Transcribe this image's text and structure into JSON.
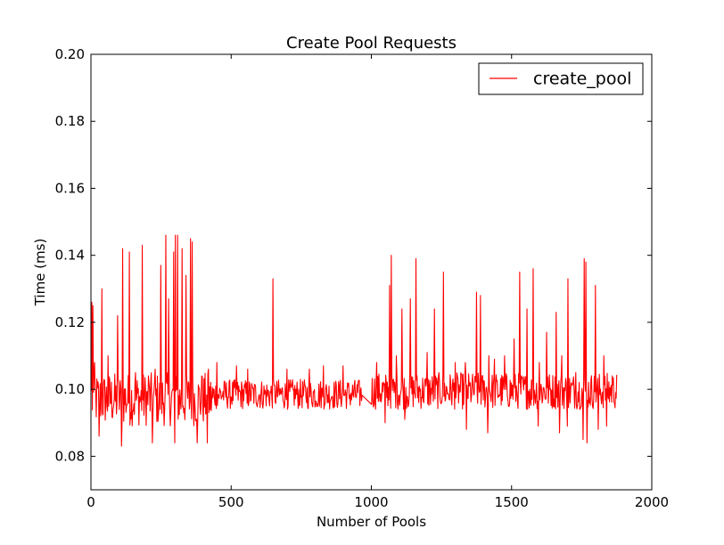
{
  "chart_data": {
    "type": "line",
    "title": "Create Pool Requests",
    "xlabel": "Number of Pools",
    "ylabel": "Time (ms)",
    "xlim": [
      0,
      2000
    ],
    "ylim": [
      0.07,
      0.2
    ],
    "x_ticks": [
      0,
      500,
      1000,
      1500,
      2000
    ],
    "x_tick_labels": [
      "0",
      "500",
      "1000",
      "1500",
      "2000"
    ],
    "y_ticks": [
      0.08,
      0.1,
      0.12,
      0.14,
      0.16,
      0.18,
      0.2
    ],
    "y_tick_labels": [
      "0.08",
      "0.10",
      "0.12",
      "0.14",
      "0.16",
      "0.18",
      "0.20"
    ],
    "grid": false,
    "legend": {
      "position": "top-right",
      "entries": [
        "create_pool"
      ]
    },
    "series": [
      {
        "name": "create_pool",
        "color": "#ff0000",
        "x_start": 1,
        "x_end": 1875,
        "gap": [
          968,
          1000
        ],
        "baseline": 0.099,
        "segments": [
          {
            "from": 1,
            "to": 440,
            "mean": 0.097,
            "amplitude": 0.008
          },
          {
            "from": 440,
            "to": 968,
            "mean": 0.0985,
            "amplitude": 0.0045
          },
          {
            "from": 1000,
            "to": 1875,
            "mean": 0.0995,
            "amplitude": 0.0055
          }
        ],
        "peaks": [
          {
            "x": 3,
            "y": 0.126
          },
          {
            "x": 8,
            "y": 0.125
          },
          {
            "x": 14,
            "y": 0.108
          },
          {
            "x": 40,
            "y": 0.13
          },
          {
            "x": 62,
            "y": 0.11
          },
          {
            "x": 96,
            "y": 0.122
          },
          {
            "x": 113,
            "y": 0.142
          },
          {
            "x": 138,
            "y": 0.141
          },
          {
            "x": 160,
            "y": 0.105
          },
          {
            "x": 183,
            "y": 0.143
          },
          {
            "x": 205,
            "y": 0.104
          },
          {
            "x": 230,
            "y": 0.106
          },
          {
            "x": 250,
            "y": 0.137
          },
          {
            "x": 268,
            "y": 0.146
          },
          {
            "x": 277,
            "y": 0.127
          },
          {
            "x": 295,
            "y": 0.141
          },
          {
            "x": 302,
            "y": 0.146
          },
          {
            "x": 309,
            "y": 0.146
          },
          {
            "x": 325,
            "y": 0.142
          },
          {
            "x": 340,
            "y": 0.134
          },
          {
            "x": 355,
            "y": 0.145
          },
          {
            "x": 362,
            "y": 0.144
          },
          {
            "x": 395,
            "y": 0.104
          },
          {
            "x": 420,
            "y": 0.106
          },
          {
            "x": 450,
            "y": 0.108
          },
          {
            "x": 520,
            "y": 0.107
          },
          {
            "x": 560,
            "y": 0.106
          },
          {
            "x": 650,
            "y": 0.133
          },
          {
            "x": 700,
            "y": 0.106
          },
          {
            "x": 780,
            "y": 0.106
          },
          {
            "x": 830,
            "y": 0.107
          },
          {
            "x": 900,
            "y": 0.107
          },
          {
            "x": 1020,
            "y": 0.108
          },
          {
            "x": 1066,
            "y": 0.131
          },
          {
            "x": 1072,
            "y": 0.14
          },
          {
            "x": 1090,
            "y": 0.11
          },
          {
            "x": 1110,
            "y": 0.124
          },
          {
            "x": 1140,
            "y": 0.127
          },
          {
            "x": 1160,
            "y": 0.139
          },
          {
            "x": 1200,
            "y": 0.111
          },
          {
            "x": 1225,
            "y": 0.124
          },
          {
            "x": 1258,
            "y": 0.135
          },
          {
            "x": 1300,
            "y": 0.108
          },
          {
            "x": 1335,
            "y": 0.108
          },
          {
            "x": 1375,
            "y": 0.129
          },
          {
            "x": 1390,
            "y": 0.128
          },
          {
            "x": 1420,
            "y": 0.11
          },
          {
            "x": 1440,
            "y": 0.109
          },
          {
            "x": 1475,
            "y": 0.11
          },
          {
            "x": 1510,
            "y": 0.115
          },
          {
            "x": 1530,
            "y": 0.135
          },
          {
            "x": 1555,
            "y": 0.124
          },
          {
            "x": 1578,
            "y": 0.136
          },
          {
            "x": 1600,
            "y": 0.108
          },
          {
            "x": 1625,
            "y": 0.117
          },
          {
            "x": 1660,
            "y": 0.123
          },
          {
            "x": 1680,
            "y": 0.11
          },
          {
            "x": 1702,
            "y": 0.133
          },
          {
            "x": 1730,
            "y": 0.105
          },
          {
            "x": 1760,
            "y": 0.139
          },
          {
            "x": 1766,
            "y": 0.138
          },
          {
            "x": 1800,
            "y": 0.131
          },
          {
            "x": 1830,
            "y": 0.11
          },
          {
            "x": 1860,
            "y": 0.104
          }
        ],
        "troughs": [
          {
            "x": 30,
            "y": 0.086
          },
          {
            "x": 95,
            "y": 0.083
          },
          {
            "x": 110,
            "y": 0.083
          },
          {
            "x": 160,
            "y": 0.084
          },
          {
            "x": 220,
            "y": 0.084
          },
          {
            "x": 300,
            "y": 0.084
          },
          {
            "x": 340,
            "y": 0.084
          },
          {
            "x": 380,
            "y": 0.084
          },
          {
            "x": 415,
            "y": 0.084
          },
          {
            "x": 650,
            "y": 0.088
          },
          {
            "x": 1050,
            "y": 0.09
          },
          {
            "x": 1120,
            "y": 0.091
          },
          {
            "x": 1340,
            "y": 0.088
          },
          {
            "x": 1415,
            "y": 0.087
          },
          {
            "x": 1595,
            "y": 0.089
          },
          {
            "x": 1672,
            "y": 0.087
          },
          {
            "x": 1700,
            "y": 0.089
          },
          {
            "x": 1755,
            "y": 0.085
          },
          {
            "x": 1769,
            "y": 0.084
          },
          {
            "x": 1810,
            "y": 0.088
          },
          {
            "x": 1840,
            "y": 0.089
          }
        ]
      }
    ]
  }
}
